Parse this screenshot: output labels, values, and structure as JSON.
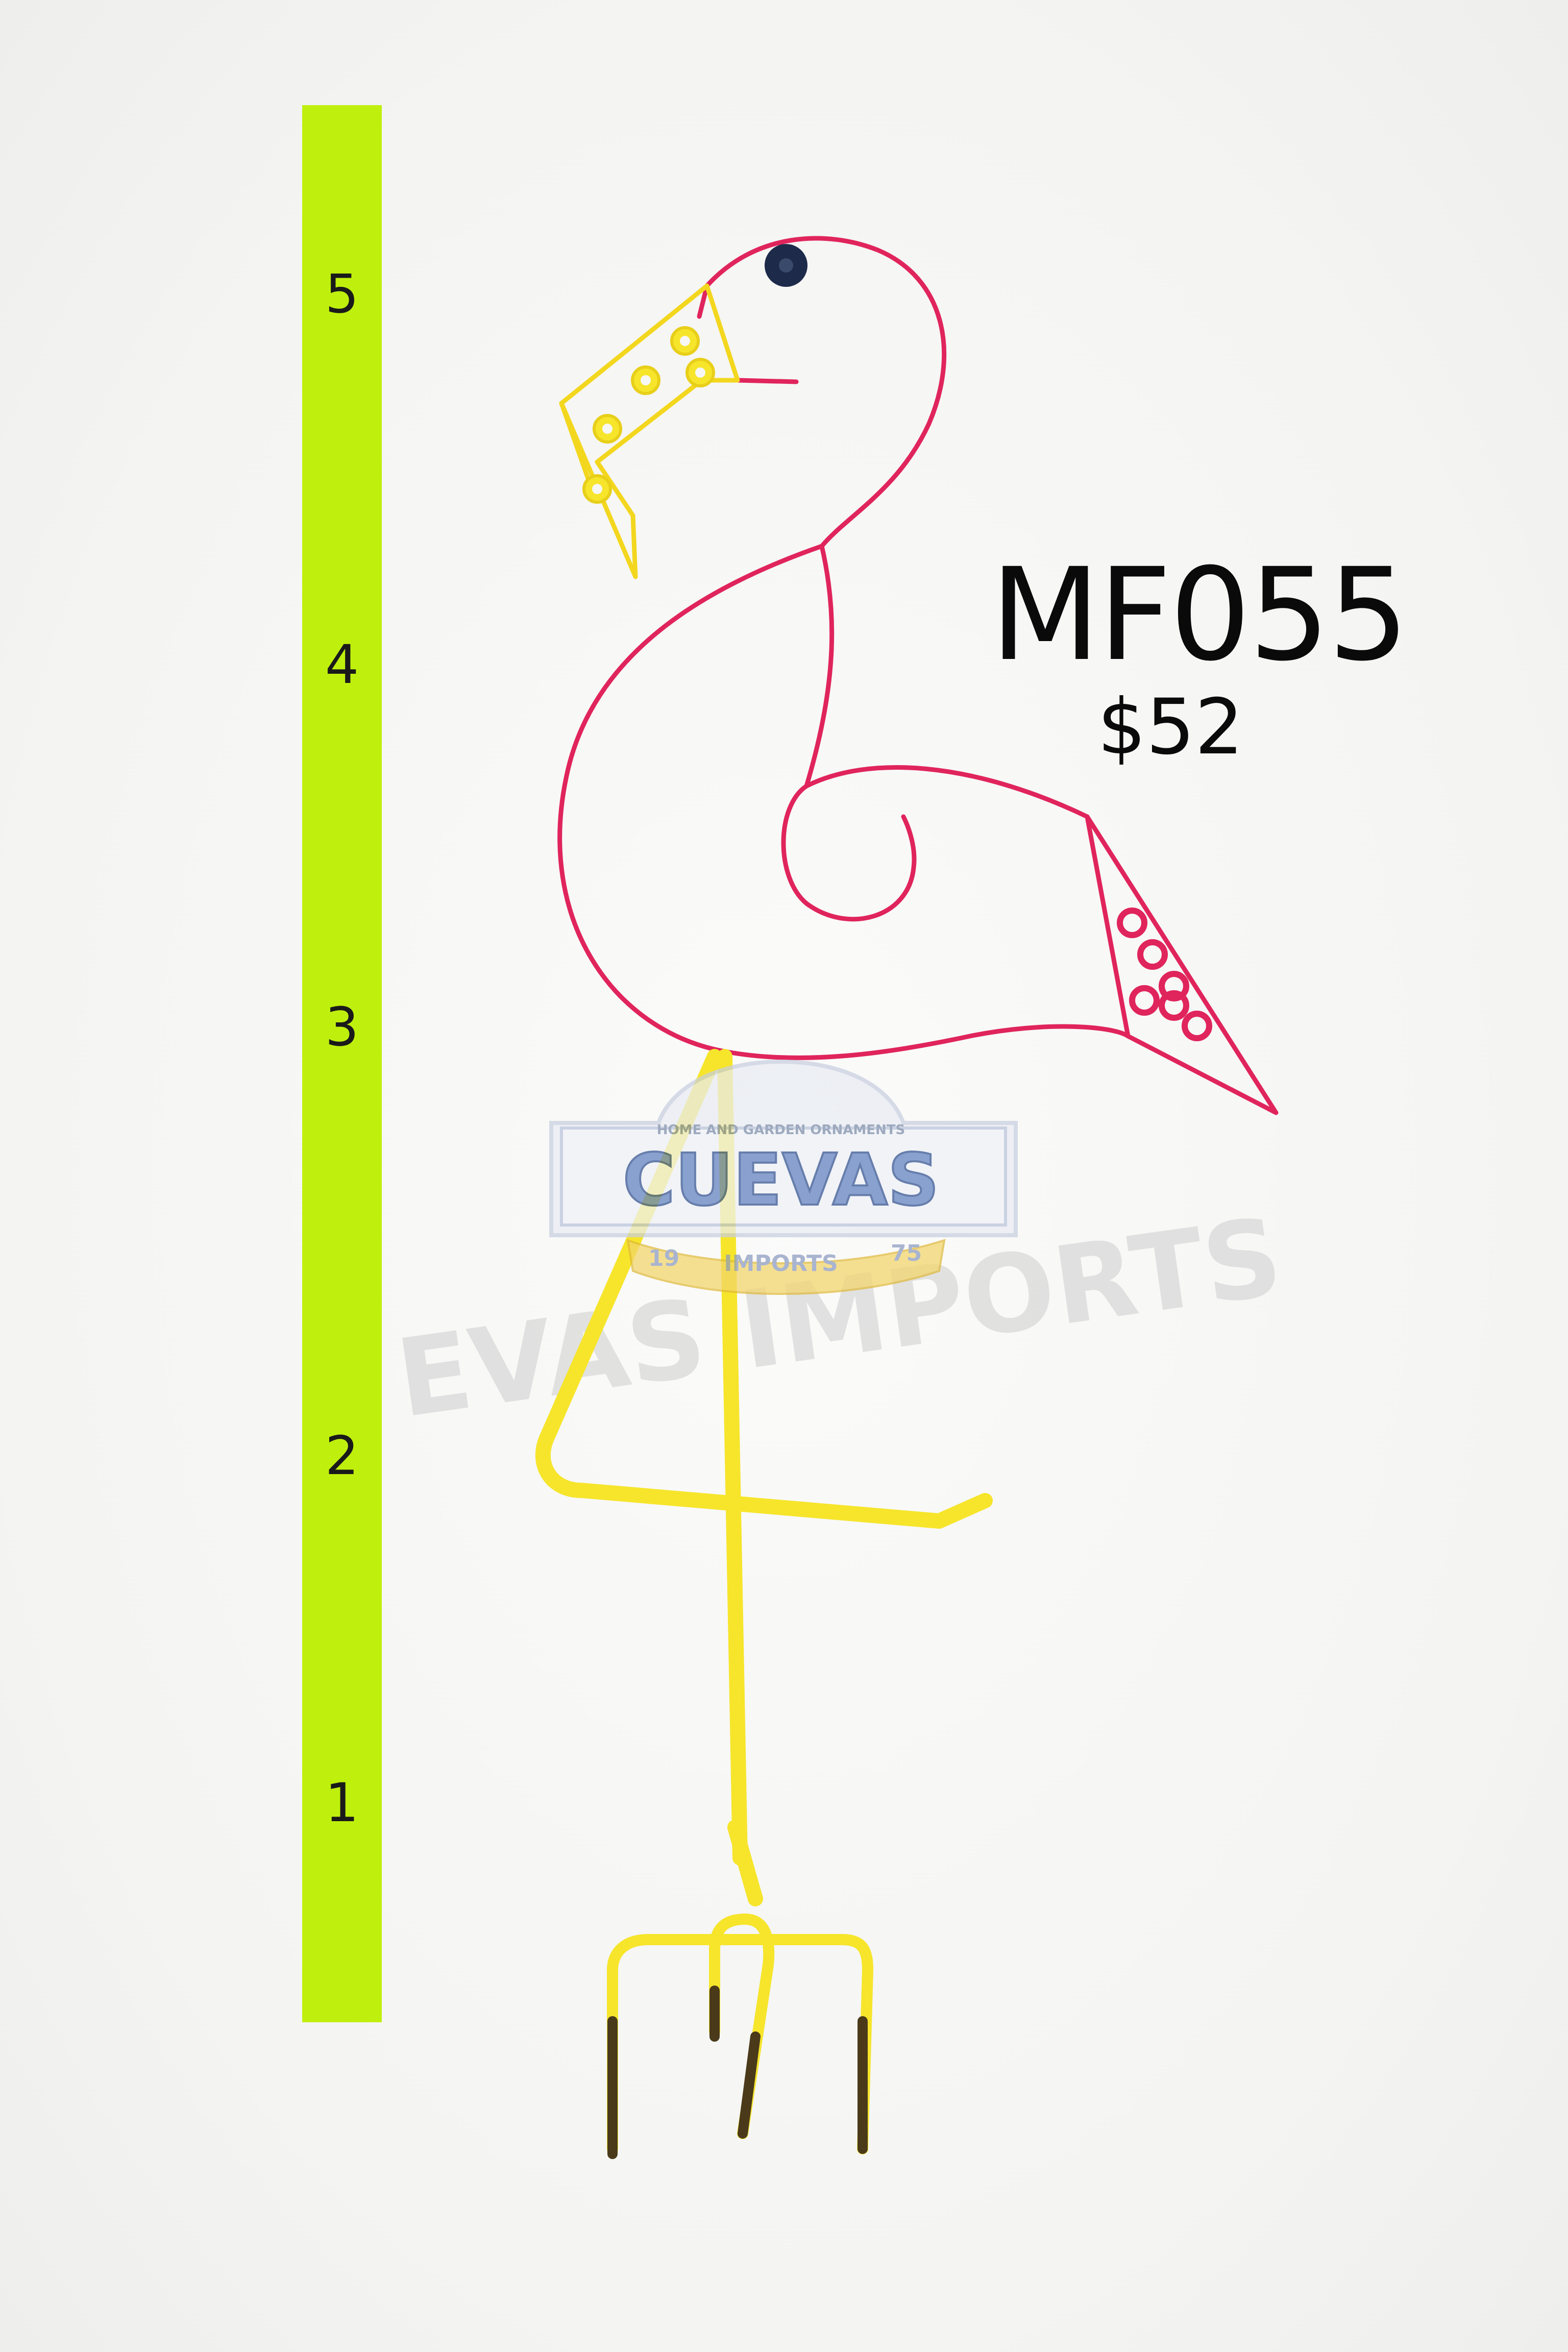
{
  "product": {
    "code": "MF055",
    "price": "$52"
  },
  "ruler": {
    "color": "#bff00d",
    "marks": [
      "5",
      "4",
      "3",
      "2",
      "1"
    ]
  },
  "watermark": {
    "brand": "CUEVAS",
    "tagline": "HOME AND GARDEN ORNAMENTS",
    "sub": "IMPORTS",
    "year_left": "19",
    "year_right": "75",
    "ghost_text": "EVAS IMPORTS"
  },
  "colors": {
    "flamingo_body": "#e0245c",
    "flamingo_legs": "#f6e52b",
    "eye": "#1d2a4a"
  }
}
